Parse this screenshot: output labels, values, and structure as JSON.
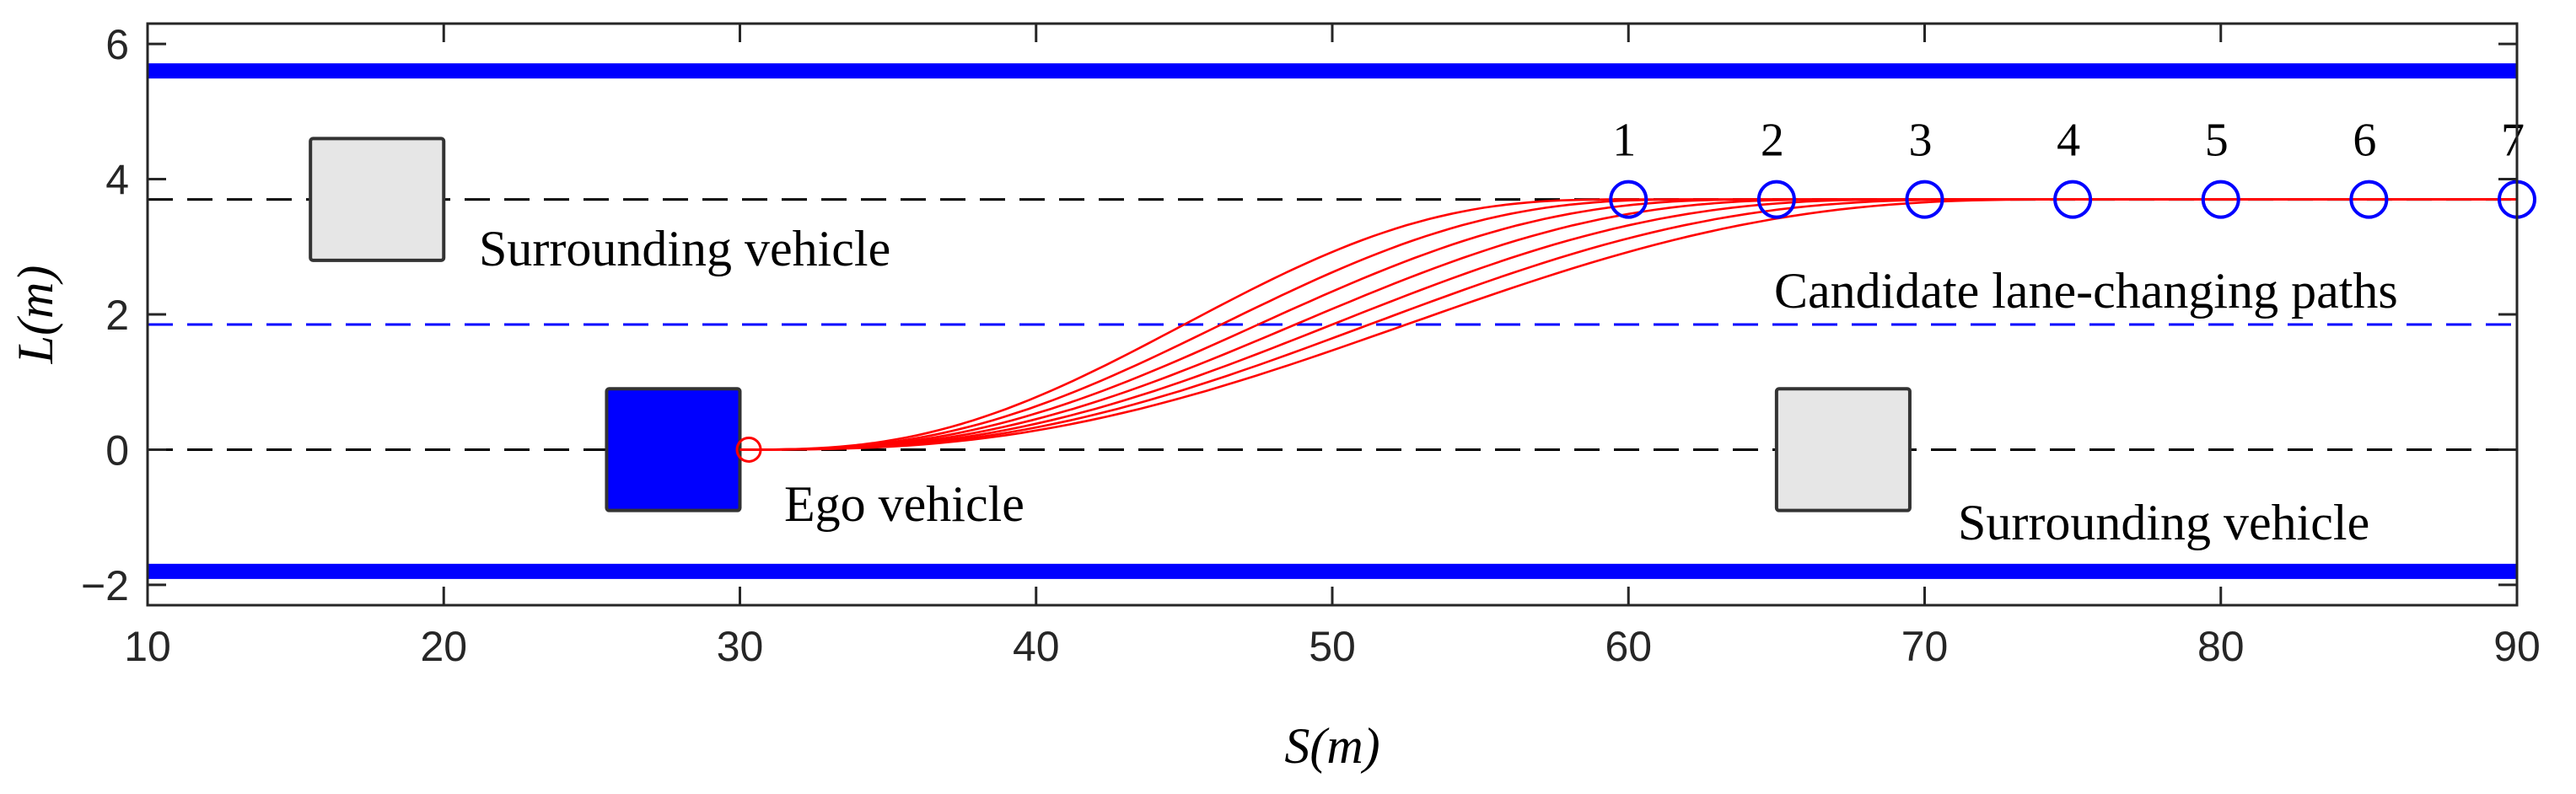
{
  "chart_data": {
    "type": "line",
    "xlabel": "S(m)",
    "ylabel": "L(m)",
    "xlim": [
      10,
      90
    ],
    "ylim": [
      -2.3,
      6.3
    ],
    "xticks": [
      10,
      20,
      30,
      40,
      50,
      60,
      70,
      80,
      90
    ],
    "yticks": [
      -2,
      0,
      2,
      4,
      6
    ],
    "xtick_labels": [
      "10",
      "20",
      "30",
      "40",
      "50",
      "60",
      "70",
      "80",
      "90"
    ],
    "ytick_labels": [
      "−2",
      "0",
      "2",
      "4",
      "6"
    ],
    "grid": false,
    "colors": {
      "road_edge": "#0000ff",
      "center_line": "#0000ff",
      "lane_line": "#000000",
      "path": "#ff0000",
      "target": "#0000ff",
      "ego_fill": "#0000ff",
      "surrounding_fill": "#e6e6e6"
    },
    "road_edges": [
      5.6,
      -1.8
    ],
    "lane_centerlines": [
      3.7,
      0
    ],
    "lane_divider": 1.85,
    "ego_vehicle": {
      "s": [
        25.5,
        30
      ],
      "l": [
        -0.9,
        0.9
      ],
      "label": "Ego vehicle"
    },
    "ego_marker": {
      "s": 30.3,
      "l": 0
    },
    "surrounding_vehicles": [
      {
        "s": [
          15.5,
          20
        ],
        "l": [
          2.8,
          4.6
        ],
        "label": "Surrounding vehicle"
      },
      {
        "s": [
          65,
          69.5
        ],
        "l": [
          -0.9,
          0.9
        ],
        "label": "Surrounding vehicle"
      }
    ],
    "paths": {
      "label": "Candidate lane-changing paths",
      "start": {
        "s": 30,
        "l": 0
      },
      "end_l": 3.7,
      "end_s": [
        60,
        65,
        70,
        75,
        80,
        85,
        90
      ],
      "plateau_s": [
        60,
        62.5,
        65,
        67.5,
        70,
        72.5,
        75
      ]
    },
    "target_points": {
      "s": [
        60,
        65,
        70,
        75,
        80,
        85,
        90
      ],
      "l": [
        3.7,
        3.7,
        3.7,
        3.7,
        3.7,
        3.7,
        3.7
      ],
      "labels": [
        "1",
        "2",
        "3",
        "4",
        "5",
        "6",
        "7"
      ]
    }
  }
}
